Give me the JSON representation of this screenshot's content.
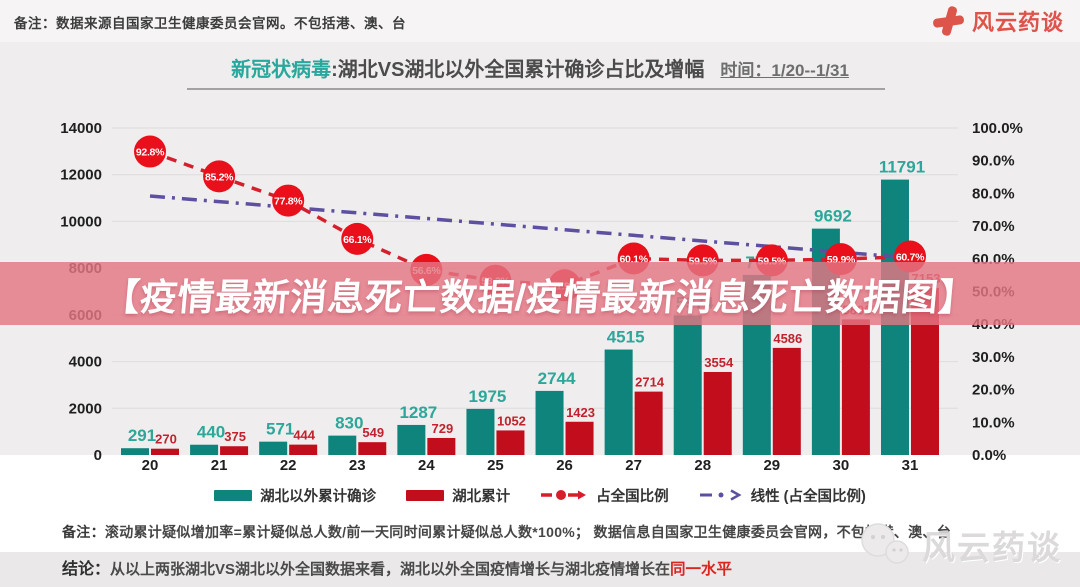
{
  "header": {
    "note": "备注：数据来源自国家卫生健康委员会官网。不包括港、澳、台",
    "brand": "风云药谈"
  },
  "title": {
    "highlight": "新冠状病毒",
    "main": ":湖北VS湖北以外全国累计确诊占比及增幅",
    "time": "时间：1/20--1/31"
  },
  "overlay_banner": "【疫情最新消息死亡数据/疫情最新消息死亡数据图】",
  "chart_data": {
    "type": "bar",
    "subtype": "grouped bars + dashed percentage line with point badges + linear trendline",
    "categories": [
      "20",
      "21",
      "22",
      "23",
      "24",
      "25",
      "26",
      "27",
      "28",
      "29",
      "30",
      "31"
    ],
    "series": [
      {
        "name": "湖北以外累计确诊",
        "type": "bar",
        "color": "#0e847c",
        "label_color": "#2da79a",
        "values": [
          291,
          440,
          571,
          830,
          1287,
          1975,
          2744,
          4515,
          5974,
          7711,
          9692,
          11791
        ]
      },
      {
        "name": "湖北累计",
        "type": "bar",
        "color": "#c20d1c",
        "label_color": "#c1222d",
        "values": [
          270,
          375,
          444,
          549,
          729,
          1052,
          1423,
          2714,
          3554,
          4586,
          5806,
          7153
        ]
      },
      {
        "name": "占全国比例",
        "type": "line",
        "style": "dashed with red circular point badges",
        "color": "#d5202c",
        "point_color": "#e90f1b",
        "values_pct": [
          92.8,
          85.2,
          77.8,
          66.1,
          56.6,
          53.3,
          51.9,
          60.1,
          59.5,
          59.5,
          59.9,
          60.7
        ]
      },
      {
        "name": "线性 (占全国比例)",
        "type": "trendline",
        "style": "dash-dot",
        "color": "#5d50a0",
        "start_pct": 79.2,
        "end_pct": 60.3
      }
    ],
    "y_left": {
      "min": 0,
      "max": 14000,
      "ticks": [
        14000,
        12000,
        10000,
        8000,
        6000,
        4000,
        2000,
        0
      ]
    },
    "y_right": {
      "min": 0,
      "max": 100,
      "ticks": [
        "100.0%",
        "90.0%",
        "80.0%",
        "70.0%",
        "60.0%",
        "50.0%",
        "40.0%",
        "30.0%",
        "20.0%",
        "10.0%",
        "0.0%"
      ]
    },
    "grid": "horizontal",
    "legend_position": "bottom"
  },
  "footer": {
    "note_prefix": "备注：",
    "note_body": "滚动累计疑似增加率=累计疑似总人数/前一天同时间累计疑似总人数*100%；  数据信息自国家卫生健康委员会官网，不包括港、澳、台",
    "conclusion_prefix": "结论：",
    "conclusion_body": "从以上两张湖北VS湖北以外全国数据来看，湖北以外全国疫情增长与湖北疫情增长在",
    "conclusion_highlight": "同一水平"
  },
  "watermark": "风云药谈"
}
